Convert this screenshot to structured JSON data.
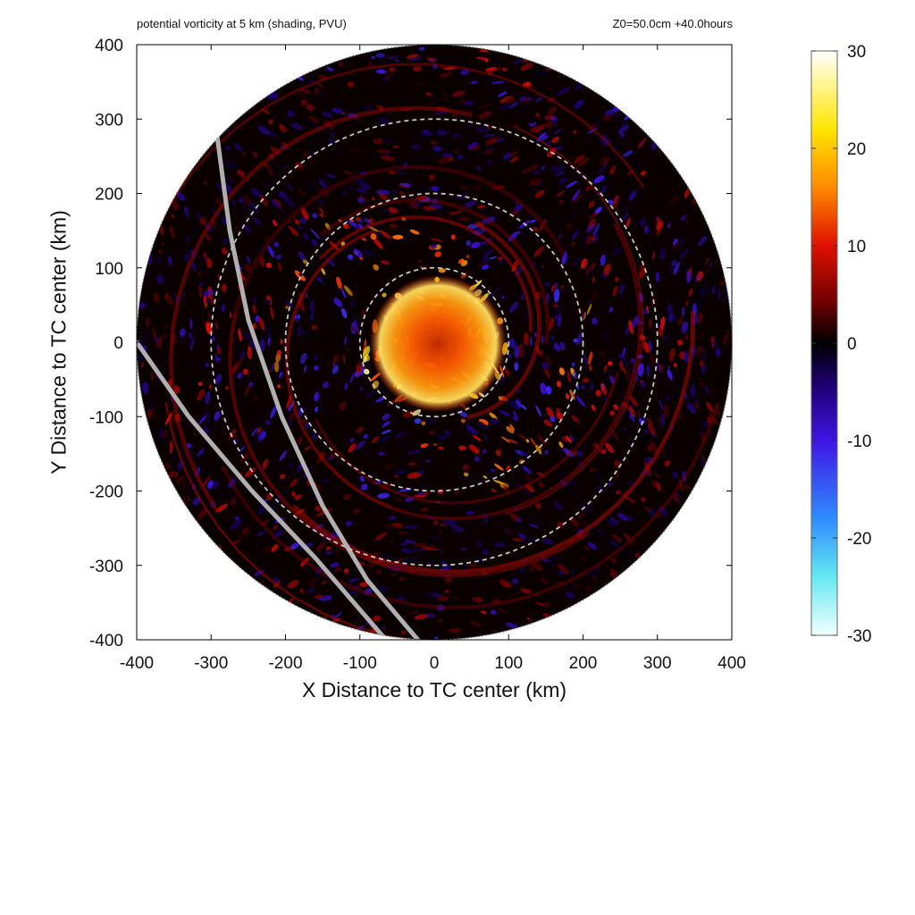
{
  "chart_data": {
    "type": "heatmap",
    "title": "potential vorticity at 5 km (shading, PVU)",
    "subtitle": "Z0=50.0cm  +40.0hours",
    "xlabel": "X Distance to TC center (km)",
    "ylabel": "Y Distance to TC center (km)",
    "xlim": [
      -400,
      400
    ],
    "ylim": [
      -400,
      400
    ],
    "x_ticks": [
      -400,
      -300,
      -200,
      -100,
      0,
      100,
      200,
      300,
      400
    ],
    "y_ticks": [
      -400,
      -300,
      -200,
      -100,
      0,
      100,
      200,
      300,
      400
    ],
    "x_tick_labels": [
      "-400",
      "-300",
      "-200",
      "-100",
      "0",
      "100",
      "200",
      "300",
      "400"
    ],
    "y_tick_labels": [
      "-400",
      "-300",
      "-200",
      "-100",
      "0",
      "100",
      "200",
      "300",
      "400"
    ],
    "domain_radius_km": 400,
    "range_rings_km": [
      100,
      200,
      300
    ],
    "colorbar": {
      "min": -30,
      "max": 30,
      "ticks": [
        30,
        20,
        10,
        0,
        -10,
        -20,
        -30
      ],
      "tick_labels": [
        "30",
        "20",
        "10",
        "0",
        "-10",
        "-20",
        "-30"
      ],
      "stops": [
        {
          "v": -30,
          "c": "#f2ffff"
        },
        {
          "v": -24,
          "c": "#66e8f0"
        },
        {
          "v": -18,
          "c": "#2f8cff"
        },
        {
          "v": -10,
          "c": "#3f15e6"
        },
        {
          "v": -4,
          "c": "#1a006b"
        },
        {
          "v": 0,
          "c": "#000000"
        },
        {
          "v": 4,
          "c": "#6b0000"
        },
        {
          "v": 10,
          "c": "#e01000"
        },
        {
          "v": 16,
          "c": "#ff8a00"
        },
        {
          "v": 22,
          "c": "#ffe600"
        },
        {
          "v": 30,
          "c": "#ffffff"
        }
      ]
    },
    "track_lines": [
      {
        "name": "track-1",
        "points": [
          [
            -292,
            278
          ],
          [
            -275,
            150
          ],
          [
            -250,
            30
          ],
          [
            -205,
            -100
          ],
          [
            -150,
            -220
          ],
          [
            -90,
            -320
          ],
          [
            -22,
            -400
          ]
        ]
      },
      {
        "name": "track-2",
        "points": [
          [
            -400,
            0
          ],
          [
            -330,
            -100
          ],
          [
            -245,
            -200
          ],
          [
            -160,
            -290
          ],
          [
            -65,
            -400
          ]
        ]
      }
    ]
  },
  "colors": {
    "ring": "#c8c8c8",
    "track": "#b0b0b0",
    "axis": "#000000",
    "background": "#ffffff"
  }
}
